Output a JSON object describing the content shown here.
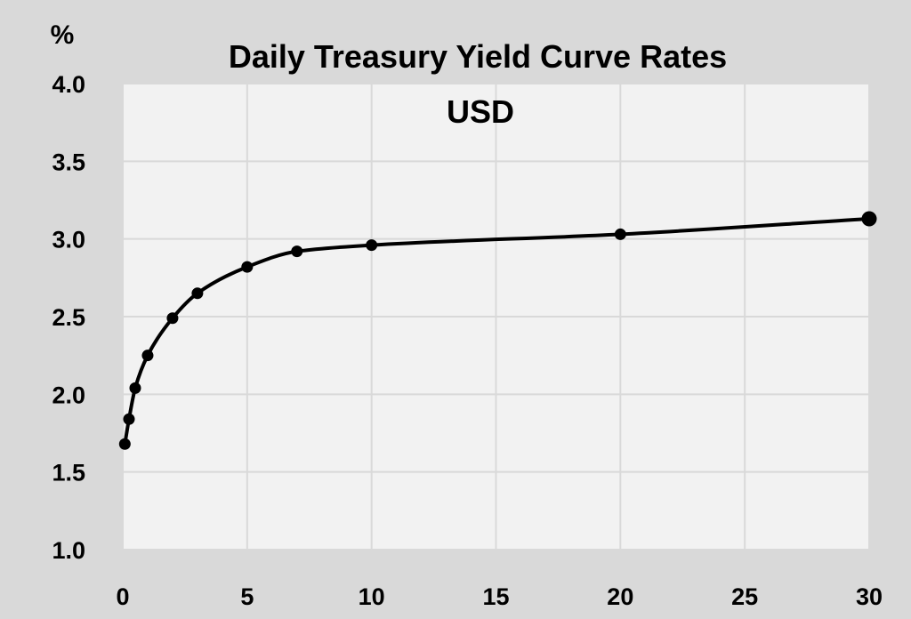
{
  "chart_data": {
    "type": "line",
    "title": "Daily Treasury Yield Curve Rates",
    "subtitle": "USD",
    "ylabel": "%",
    "xlabel": "",
    "x": [
      0.0833,
      0.25,
      0.5,
      1,
      2,
      3,
      5,
      7,
      10,
      20,
      30
    ],
    "series": [
      {
        "values": [
          1.68,
          1.84,
          2.04,
          2.25,
          2.49,
          2.65,
          2.82,
          2.92,
          2.96,
          3.03,
          3.13
        ]
      }
    ],
    "xlim": [
      0,
      30
    ],
    "ylim": [
      1.0,
      4.0
    ],
    "x_ticks": [
      "0",
      "5",
      "10",
      "15",
      "20",
      "25",
      "30"
    ],
    "y_ticks": [
      "1.0",
      "1.5",
      "2.0",
      "2.5",
      "3.0",
      "3.5",
      "4.0"
    ],
    "grid": true,
    "legend": "none",
    "colors": {
      "background": "#d9d9d9",
      "plot_area": "#f2f2f2",
      "grid": "#d9d9d9",
      "line": "#000000"
    }
  }
}
